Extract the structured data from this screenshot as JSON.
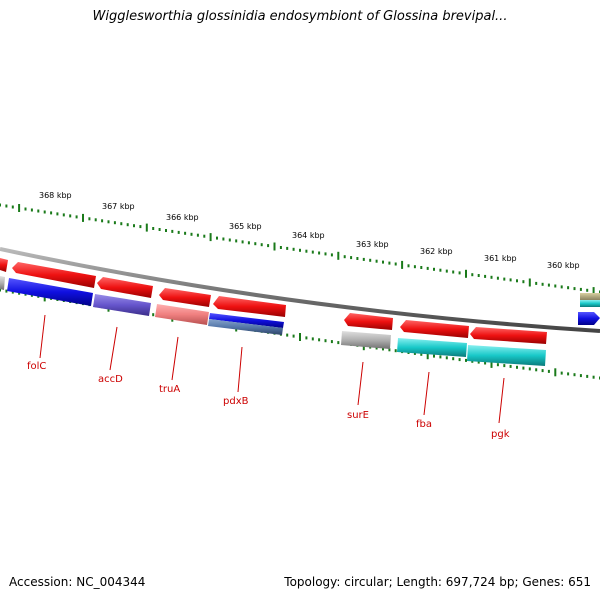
{
  "title": "Wigglesworthia glossinidia endosymbiont of Glossina brevipal...",
  "footer": {
    "accession": "Accession: NC_004344",
    "summary": "Topology: circular; Length: 697,724 bp; Genes: 651"
  },
  "colors": {
    "forward_strand": "#ee1111",
    "reverse_strand": "#1111dd",
    "tick": "#1a7a1a",
    "gene_label": "#cc0000",
    "backbone": "#888888"
  },
  "scale": {
    "unit": "kbp",
    "labels": [
      "368 kbp",
      "367 kbp",
      "366 kbp",
      "365 kbp",
      "364 kbp",
      "363 kbp",
      "362 kbp",
      "361 kbp",
      "360 kbp"
    ]
  },
  "genes": [
    {
      "name": "folC",
      "strand": "reverse",
      "fill": "#f01010"
    },
    {
      "name": "accD",
      "strand": "reverse",
      "fill": "#f01010"
    },
    {
      "name": "truA",
      "strand": "reverse",
      "fill": "#f01010"
    },
    {
      "name": "pdxB",
      "strand": "reverse",
      "fill": "#f01010"
    },
    {
      "name": "surE",
      "strand": "reverse",
      "fill": "#f01010"
    },
    {
      "name": "fba",
      "strand": "reverse",
      "fill": "#f01010"
    },
    {
      "name": "pgk",
      "strand": "reverse",
      "fill": "#f01010"
    }
  ],
  "feature_bars": [
    {
      "gene": "folC",
      "fill": "#1010e0"
    },
    {
      "gene": "accD",
      "fill": "#6655cc"
    },
    {
      "gene": "truA",
      "fill": "#f08080"
    },
    {
      "gene": "pdxB",
      "fill": "#1010e0"
    },
    {
      "gene": "pdxB",
      "fill": "#5577aa"
    },
    {
      "gene": "surE",
      "fill": "#b0b0b0"
    },
    {
      "gene": "fba",
      "fill": "#18c8c8"
    },
    {
      "gene": "pgk",
      "fill": "#18c8c8"
    }
  ]
}
